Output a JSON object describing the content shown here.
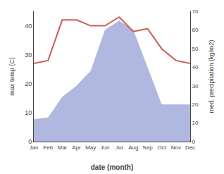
{
  "chart_data": {
    "type": "line",
    "categories": [
      "Jan",
      "Feb",
      "Mar",
      "Apr",
      "May",
      "Jun",
      "Jul",
      "Aug",
      "Sep",
      "Oct",
      "Nov",
      "Dec"
    ],
    "xlabel": "date (month)",
    "ylabel": "max temp (C)",
    "y2label": "med. precipitation (kg/m2)",
    "series": [
      {
        "type": "area",
        "axis": "y2",
        "color": "#b0b8e0",
        "values": [
          12,
          13,
          24,
          30,
          38,
          60,
          65,
          60,
          40,
          20,
          20,
          20
        ]
      },
      {
        "type": "line",
        "color": "#cd5c5c",
        "values": [
          27,
          28,
          42,
          42,
          40,
          40,
          43,
          38,
          39,
          32,
          28,
          27
        ]
      }
    ],
    "ylim": [
      0,
      45
    ],
    "yticks": [
      0,
      10,
      20,
      30,
      40
    ],
    "y2lim": [
      0,
      70
    ],
    "y2ticks": [
      0,
      10,
      20,
      30,
      40,
      50,
      60,
      70
    ],
    "grid": false
  }
}
